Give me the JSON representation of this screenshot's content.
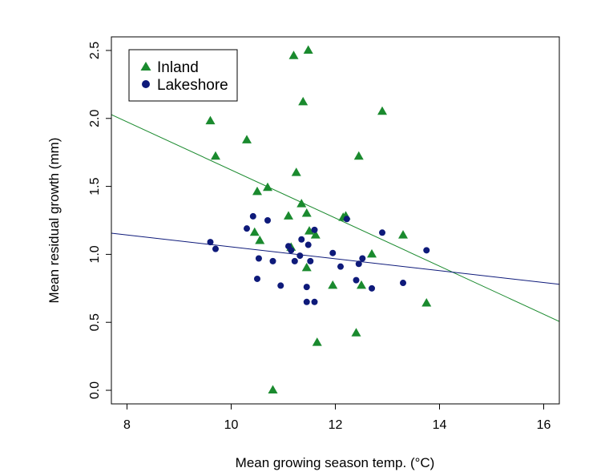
{
  "chart_data": {
    "type": "scatter",
    "title": "",
    "xlabel": "Mean growing season temp. (°C)",
    "ylabel": "Mean residual growth (mm)",
    "xlim": [
      7.7,
      16.3
    ],
    "ylim": [
      -0.1,
      2.6
    ],
    "xticks": [
      "8",
      "10",
      "12",
      "14",
      "16"
    ],
    "yticks": [
      "0.0",
      "0.5",
      "1.0",
      "1.5",
      "2.0",
      "2.5"
    ],
    "grid": false,
    "legend_position": "top-left",
    "series": [
      {
        "name": "Inland",
        "marker": "triangle",
        "color": "#1a8a2e",
        "points": [
          [
            9.6,
            1.98
          ],
          [
            9.7,
            1.72
          ],
          [
            10.3,
            1.84
          ],
          [
            10.45,
            1.16
          ],
          [
            10.5,
            1.46
          ],
          [
            10.55,
            1.1
          ],
          [
            10.7,
            1.49
          ],
          [
            10.8,
            0.0
          ],
          [
            11.1,
            1.28
          ],
          [
            11.15,
            1.05
          ],
          [
            11.2,
            2.46
          ],
          [
            11.25,
            1.6
          ],
          [
            11.35,
            1.37
          ],
          [
            11.38,
            2.12
          ],
          [
            11.45,
            1.3
          ],
          [
            11.48,
            2.5
          ],
          [
            11.45,
            0.9
          ],
          [
            11.5,
            1.17
          ],
          [
            11.62,
            1.14
          ],
          [
            11.65,
            0.35
          ],
          [
            11.95,
            0.77
          ],
          [
            12.15,
            1.27
          ],
          [
            12.2,
            1.28
          ],
          [
            12.4,
            0.42
          ],
          [
            12.45,
            1.72
          ],
          [
            12.5,
            0.77
          ],
          [
            12.7,
            1.0
          ],
          [
            12.9,
            2.05
          ],
          [
            13.3,
            1.14
          ],
          [
            13.75,
            0.64
          ]
        ],
        "fit": {
          "intercept": 3.39,
          "slope": -0.1769
        }
      },
      {
        "name": "Lakeshore",
        "marker": "circle",
        "color": "#0e1a7a",
        "points": [
          [
            9.6,
            1.09
          ],
          [
            9.7,
            1.04
          ],
          [
            10.3,
            1.19
          ],
          [
            10.42,
            1.28
          ],
          [
            10.5,
            0.82
          ],
          [
            10.53,
            0.97
          ],
          [
            10.7,
            1.25
          ],
          [
            10.8,
            0.95
          ],
          [
            10.95,
            0.77
          ],
          [
            11.1,
            1.06
          ],
          [
            11.15,
            1.03
          ],
          [
            11.22,
            0.95
          ],
          [
            11.32,
            0.99
          ],
          [
            11.35,
            1.11
          ],
          [
            11.45,
            0.76
          ],
          [
            11.45,
            0.65
          ],
          [
            11.48,
            1.07
          ],
          [
            11.52,
            0.95
          ],
          [
            11.6,
            1.18
          ],
          [
            11.6,
            0.65
          ],
          [
            11.95,
            1.01
          ],
          [
            12.1,
            0.91
          ],
          [
            12.22,
            1.26
          ],
          [
            12.4,
            0.81
          ],
          [
            12.45,
            0.93
          ],
          [
            12.52,
            0.97
          ],
          [
            12.7,
            0.75
          ],
          [
            12.9,
            1.16
          ],
          [
            13.3,
            0.79
          ],
          [
            13.75,
            1.03
          ]
        ],
        "fit": {
          "intercept": 1.492,
          "slope": -0.0437
        }
      }
    ]
  }
}
